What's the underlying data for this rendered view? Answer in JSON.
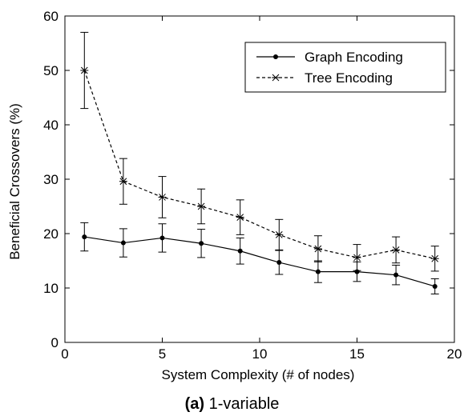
{
  "chart_data": {
    "type": "line",
    "xlabel": "System Complexity (# of nodes)",
    "ylabel": "Beneficial Crossovers (%)",
    "xlim": [
      0,
      20
    ],
    "ylim": [
      0,
      60
    ],
    "xticks": [
      0,
      5,
      10,
      15,
      20
    ],
    "yticks": [
      0,
      10,
      20,
      30,
      40,
      50,
      60
    ],
    "grid": false,
    "legend_position": "top-right",
    "x": [
      1,
      3,
      5,
      7,
      9,
      11,
      13,
      15,
      17,
      19
    ],
    "series": [
      {
        "name": "Graph Encoding",
        "style": "solid",
        "marker": "dot",
        "color": "#000000",
        "values": [
          19.4,
          18.3,
          19.2,
          18.2,
          16.8,
          14.7,
          13.0,
          13.0,
          12.4,
          10.3
        ],
        "error": [
          2.6,
          2.6,
          2.6,
          2.6,
          2.4,
          2.2,
          2.0,
          1.8,
          1.8,
          1.4
        ]
      },
      {
        "name": "Tree Encoding",
        "style": "dashed",
        "marker": "asterisk",
        "color": "#000000",
        "values": [
          50.0,
          29.6,
          26.7,
          25.0,
          23.0,
          19.8,
          17.2,
          15.6,
          17.0,
          15.4
        ],
        "error": [
          7.0,
          4.2,
          3.8,
          3.2,
          3.2,
          2.8,
          2.4,
          2.4,
          2.4,
          2.3
        ]
      }
    ]
  },
  "caption": {
    "label": "(a)",
    "text": " 1-variable"
  }
}
